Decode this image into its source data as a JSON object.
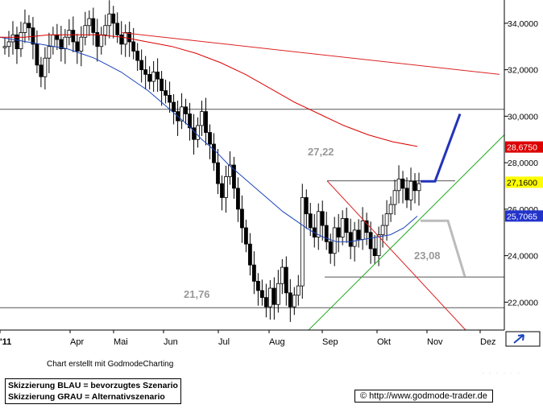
{
  "chart_data": {
    "type": "candlestick",
    "xlabels": [
      "'11",
      "Apr",
      "Mai",
      "Jun",
      "Jul",
      "Aug",
      "Sep",
      "Okt",
      "Nov",
      "Dez"
    ],
    "yticks": [
      22,
      24,
      26,
      28,
      30,
      32,
      34
    ],
    "ytick_labels": [
      "22,0000",
      "24,0000",
      "26,0000",
      "28,0000",
      "30,0000",
      "32,0000",
      "34,0000"
    ],
    "ylim": [
      20.8,
      35.0
    ],
    "price_tags": [
      {
        "value": 28.675,
        "label": "28,6750",
        "bg": "#dd0000",
        "fg": "#ffffff"
      },
      {
        "value": 27.16,
        "label": "27,1600",
        "bg": "#ffff00",
        "fg": "#000000"
      },
      {
        "value": 25.7065,
        "label": "25,7065",
        "bg": "#2233cc",
        "fg": "#ffffff"
      }
    ],
    "horizontal_levels": [
      {
        "value": 30.3,
        "label": ""
      },
      {
        "value": 27.22,
        "label": "27,22"
      },
      {
        "value": 23.08,
        "label": "23,08"
      },
      {
        "value": 21.76,
        "label": "21,76"
      }
    ],
    "series": [
      {
        "name": "",
        "style": "candles",
        "closes": [
          33.0,
          33.2,
          33.5,
          32.9,
          33.6,
          34.0,
          33.8,
          33.1,
          32.2,
          31.7,
          32.5,
          33.0,
          33.5,
          33.3,
          32.9,
          33.4,
          33.7,
          33.2,
          32.8,
          33.4,
          33.9,
          34.2,
          33.6,
          33.0,
          33.5,
          33.9,
          34.4,
          34.0,
          33.5,
          33.1,
          33.6,
          33.2,
          32.8,
          32.4,
          32.0,
          31.8,
          31.5,
          31.9,
          31.6,
          31.1,
          30.9,
          30.6,
          30.2,
          29.8,
          30.4,
          30.1,
          29.5,
          29.0,
          29.6,
          30.2,
          29.3,
          28.8,
          28.0,
          27.1,
          26.5,
          27.4,
          27.9,
          26.9,
          26.0,
          25.2,
          24.5,
          23.6,
          22.9,
          22.5,
          22.2,
          21.8,
          22.6,
          21.9,
          22.8,
          23.5,
          22.4,
          21.8,
          22.3,
          22.7,
          26.5,
          25.8,
          25.2,
          24.8,
          25.9,
          25.3,
          24.6,
          24.1,
          25.2,
          24.8,
          25.6,
          25.0,
          24.4,
          25.1,
          24.7,
          25.5,
          25.0,
          24.3,
          24.0,
          24.9,
          25.3,
          25.8,
          26.2,
          26.8,
          27.3,
          26.9,
          26.4,
          27.2,
          26.8,
          27.1
        ],
        "color": "#000000"
      },
      {
        "name": "",
        "style": "line",
        "role": "moving average 1",
        "values": [
          33.4,
          33.3,
          33.2,
          33.1,
          33.0,
          32.9,
          32.7,
          32.5,
          32.2,
          31.9,
          31.5,
          31.1,
          30.6,
          30.1,
          29.6,
          29.0,
          28.5,
          27.9,
          27.4,
          26.9,
          26.4,
          25.9,
          25.5,
          25.1,
          24.8,
          24.6,
          24.6,
          24.7,
          24.8,
          24.9,
          25.2,
          25.7
        ],
        "color": "#1a44bb"
      },
      {
        "name": "",
        "style": "line",
        "role": "moving average 2",
        "values": [
          33.4,
          33.4,
          33.5,
          33.5,
          33.5,
          33.4,
          33.2,
          33.0,
          32.7,
          32.3,
          31.8,
          31.2,
          30.6,
          30.1,
          29.6,
          29.2,
          28.9,
          28.7
        ],
        "color": "#dd0000"
      },
      {
        "name": "",
        "style": "line",
        "role": "long-term downtrend",
        "values": [
          33.6,
          31.8
        ],
        "color": "#dd2222"
      },
      {
        "name": "",
        "style": "line",
        "role": "short-term downtrend",
        "values": [
          27.22,
          20.8
        ],
        "color": "#dd2222"
      },
      {
        "name": "",
        "style": "line",
        "role": "uptrend support",
        "values": [
          20.8,
          29.2
        ],
        "color": "#22aa22"
      },
      {
        "name": "",
        "style": "line",
        "role": "bullish scenario",
        "values": [
          27.2,
          27.2,
          30.1
        ],
        "color": "#2233bb"
      },
      {
        "name": "",
        "style": "line",
        "role": "alternative scenario",
        "values": [
          25.5,
          25.5,
          23.1
        ],
        "color": "#bbbbbb"
      }
    ],
    "grid": false
  },
  "footer": {
    "credit": "Chart erstellt mit GodmodeCharting",
    "legend_blue": "Skizzierung BLAU = bevorzugtes Szenario",
    "legend_grey": "Skizzierung GRAU = Alternativszenario",
    "url": "© http://www.godmode-trader.de"
  },
  "colors": {
    "axis": "#000000",
    "ref_line": "#555555",
    "label_grey": "#999999"
  }
}
